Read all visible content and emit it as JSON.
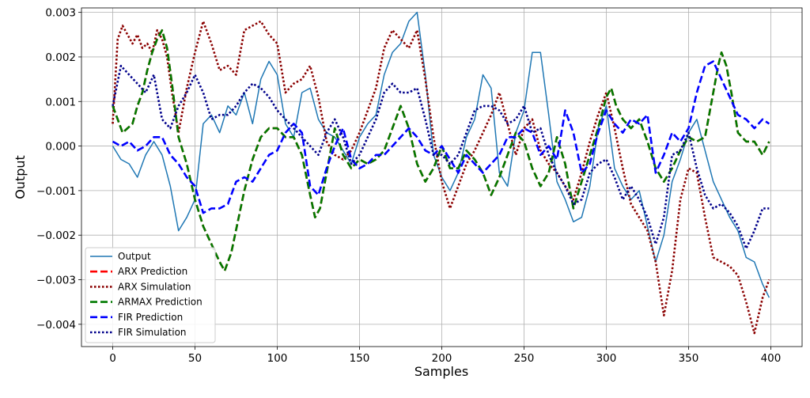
{
  "chart_data": {
    "type": "line",
    "title": "",
    "xlabel": "Samples",
    "ylabel": "Output",
    "xlim": [
      -19,
      419
    ],
    "ylim": [
      -0.0045,
      0.0031
    ],
    "x_ticks": [
      0,
      50,
      100,
      150,
      200,
      250,
      300,
      350,
      400
    ],
    "x_tick_labels": [
      "0",
      "50",
      "100",
      "150",
      "200",
      "250",
      "300",
      "350",
      "400"
    ],
    "y_ticks": [
      0.003,
      0.002,
      0.001,
      0.0,
      -0.001,
      -0.002,
      -0.003,
      -0.004
    ],
    "y_tick_labels": [
      "0.003",
      "0.002",
      "0.001",
      "0.000",
      "−0.001",
      "−0.002",
      "−0.003",
      "−0.004"
    ],
    "grid": true,
    "legend_position": "bottom-left",
    "series": [
      {
        "name": "Output",
        "color": "#1f77b4",
        "style": "solid",
        "x": [
          0,
          5,
          10,
          15,
          20,
          25,
          30,
          35,
          40,
          45,
          50,
          55,
          60,
          65,
          70,
          75,
          80,
          85,
          90,
          95,
          100,
          105,
          110,
          115,
          120,
          125,
          130,
          135,
          140,
          145,
          150,
          155,
          160,
          165,
          170,
          175,
          180,
          185,
          190,
          195,
          200,
          205,
          210,
          215,
          220,
          225,
          230,
          235,
          240,
          245,
          250,
          255,
          260,
          265,
          270,
          275,
          280,
          285,
          290,
          295,
          300,
          305,
          310,
          315,
          320,
          325,
          330,
          335,
          340,
          345,
          350,
          355,
          360,
          365,
          370,
          375,
          380,
          385,
          390,
          395,
          399
        ],
        "values": [
          0.0,
          -0.0003,
          -0.0004,
          -0.0007,
          -0.0002,
          0.0001,
          -0.0002,
          -0.0009,
          -0.0019,
          -0.0016,
          -0.0012,
          0.0005,
          0.0007,
          0.0003,
          0.0009,
          0.0007,
          0.0012,
          0.0005,
          0.0015,
          0.0019,
          0.0016,
          0.0005,
          0.0002,
          0.0012,
          0.0013,
          0.0006,
          0.0003,
          0.0002,
          -0.0001,
          -0.0004,
          0.0002,
          0.0005,
          0.0007,
          0.0016,
          0.0021,
          0.0023,
          0.0028,
          0.003,
          0.0016,
          -0.0002,
          -0.0007,
          -0.001,
          -0.0006,
          0.0002,
          0.0006,
          0.0016,
          0.0013,
          -0.0006,
          -0.0009,
          0.0003,
          0.0008,
          0.0021,
          0.0021,
          0.0007,
          -0.0008,
          -0.0012,
          -0.0017,
          -0.0016,
          -0.0009,
          0.0004,
          0.0009,
          -0.0005,
          -0.0009,
          -0.0012,
          -0.001,
          -0.0018,
          -0.0026,
          -0.002,
          -0.0008,
          -0.0003,
          0.0003,
          0.0006,
          -0.0001,
          -0.0008,
          -0.0012,
          -0.0016,
          -0.0019,
          -0.0025,
          -0.0026,
          -0.0031,
          -0.0034
        ]
      },
      {
        "name": "ARX Prediction",
        "color": "#ff0000",
        "style": "dashed",
        "x": [
          0,
          3,
          6,
          9,
          12,
          15,
          18,
          21,
          24,
          27,
          30,
          33,
          36,
          40,
          45,
          50,
          55,
          60,
          65,
          68,
          72,
          76,
          80,
          85,
          90,
          95,
          100,
          105,
          110,
          115,
          120,
          123,
          126,
          130,
          135,
          140,
          145,
          150,
          155,
          160,
          165,
          170,
          175,
          180,
          185,
          190,
          195,
          200,
          205,
          210,
          215,
          220,
          225,
          230,
          235,
          240,
          245,
          250,
          255,
          260,
          265,
          270,
          275,
          280,
          285,
          290,
          295,
          300,
          303,
          306,
          310,
          315,
          320,
          325,
          330,
          335,
          340,
          345,
          350,
          355,
          360,
          365,
          368,
          370,
          373,
          376,
          380,
          385,
          390,
          395,
          399
        ],
        "values": [
          0.0009,
          0.0006,
          0.0003,
          0.0004,
          0.0005,
          0.0009,
          0.0012,
          0.0017,
          0.0021,
          0.0024,
          0.0026,
          0.0022,
          0.0014,
          0.0002,
          -0.0004,
          -0.0012,
          -0.0018,
          -0.0022,
          -0.0026,
          -0.0028,
          -0.0024,
          -0.0017,
          -0.001,
          -0.0003,
          0.0002,
          0.0004,
          0.0004,
          0.0002,
          0.0002,
          -0.0002,
          -0.0011,
          -0.0016,
          -0.0014,
          -0.0006,
          0.0004,
          -0.0002,
          -0.0005,
          -0.0003,
          -0.0004,
          -0.0003,
          -0.0001,
          0.0004,
          0.0009,
          0.0004,
          -0.0004,
          -0.0008,
          -0.0005,
          0.0,
          -0.0005,
          -0.0005,
          -0.0001,
          -0.0003,
          -0.0006,
          -0.0011,
          -0.0007,
          -0.0002,
          0.0003,
          0.0001,
          -0.0005,
          -0.0009,
          -0.0006,
          0.0002,
          -0.0004,
          -0.0014,
          -0.0008,
          -0.0002,
          0.0004,
          0.0011,
          0.0013,
          0.0009,
          0.0006,
          0.0004,
          0.0006,
          0.0001,
          -0.0005,
          -0.0008,
          -0.0005,
          -0.0001,
          0.0002,
          0.0001,
          0.0002,
          0.0012,
          0.0018,
          0.0021,
          0.0018,
          0.0012,
          0.0003,
          0.0001,
          0.0001,
          -0.0002,
          0.0001
        ]
      },
      {
        "name": "ARX Simulation",
        "color": "#8b0000",
        "style": "dotted",
        "x": [
          0,
          3,
          6,
          9,
          12,
          15,
          18,
          21,
          24,
          27,
          30,
          33,
          36,
          40,
          45,
          50,
          55,
          60,
          65,
          70,
          75,
          80,
          85,
          90,
          95,
          100,
          105,
          110,
          115,
          120,
          125,
          130,
          135,
          140,
          145,
          150,
          155,
          160,
          165,
          170,
          175,
          180,
          185,
          190,
          195,
          200,
          205,
          210,
          215,
          220,
          225,
          230,
          235,
          240,
          245,
          250,
          255,
          260,
          265,
          270,
          275,
          280,
          285,
          290,
          295,
          300,
          305,
          310,
          315,
          320,
          325,
          330,
          335,
          340,
          345,
          350,
          355,
          360,
          365,
          370,
          375,
          380,
          385,
          390,
          395,
          399
        ],
        "values": [
          0.0005,
          0.0024,
          0.0027,
          0.0025,
          0.0023,
          0.0025,
          0.0022,
          0.0023,
          0.0021,
          0.0026,
          0.0024,
          0.002,
          0.0012,
          0.0003,
          0.0013,
          0.0021,
          0.0028,
          0.0023,
          0.0017,
          0.0018,
          0.0016,
          0.0026,
          0.0027,
          0.0028,
          0.0025,
          0.0023,
          0.0012,
          0.0014,
          0.0015,
          0.0018,
          0.0011,
          0.0001,
          -0.0002,
          -0.0003,
          -0.0001,
          0.0003,
          0.0008,
          0.0013,
          0.0022,
          0.0026,
          0.0024,
          0.0022,
          0.0026,
          0.0015,
          0.0002,
          -0.0008,
          -0.0014,
          -0.0009,
          -0.0004,
          -0.0001,
          0.0003,
          0.0007,
          0.0012,
          0.0005,
          -0.0002,
          0.0004,
          0.0006,
          -0.0001,
          -0.0004,
          -0.0006,
          -0.0009,
          -0.0012,
          -0.0006,
          0.0001,
          0.0007,
          0.0012,
          0.0004,
          -0.0005,
          -0.0013,
          -0.0016,
          -0.0019,
          -0.0026,
          -0.0038,
          -0.0028,
          -0.0012,
          -0.0005,
          -0.0006,
          -0.0016,
          -0.0025,
          -0.0026,
          -0.0027,
          -0.0029,
          -0.0035,
          -0.0042,
          -0.0034,
          -0.003
        ]
      },
      {
        "name": "ARMAX Prediction",
        "color": "#007a00",
        "style": "dashed",
        "x": [
          0,
          3,
          6,
          9,
          12,
          15,
          18,
          21,
          24,
          27,
          30,
          33,
          36,
          40,
          45,
          50,
          55,
          60,
          65,
          68,
          72,
          76,
          80,
          85,
          90,
          95,
          100,
          105,
          110,
          115,
          120,
          123,
          126,
          130,
          135,
          140,
          145,
          150,
          155,
          160,
          165,
          170,
          175,
          180,
          185,
          190,
          195,
          200,
          205,
          210,
          215,
          220,
          225,
          230,
          235,
          240,
          245,
          250,
          255,
          260,
          265,
          270,
          275,
          280,
          285,
          290,
          295,
          300,
          303,
          306,
          310,
          315,
          320,
          325,
          330,
          335,
          340,
          345,
          350,
          355,
          360,
          365,
          368,
          370,
          373,
          376,
          380,
          385,
          390,
          395,
          399
        ],
        "values": [
          0.0009,
          0.0006,
          0.0003,
          0.0004,
          0.0005,
          0.0009,
          0.0012,
          0.0017,
          0.0021,
          0.0024,
          0.0026,
          0.0022,
          0.0014,
          0.0002,
          -0.0004,
          -0.0012,
          -0.0018,
          -0.0022,
          -0.0026,
          -0.0028,
          -0.0024,
          -0.0017,
          -0.001,
          -0.0003,
          0.0002,
          0.0004,
          0.0004,
          0.0002,
          0.0002,
          -0.0002,
          -0.0011,
          -0.0016,
          -0.0014,
          -0.0006,
          0.0004,
          -0.0002,
          -0.0005,
          -0.0003,
          -0.0004,
          -0.0003,
          -0.0001,
          0.0004,
          0.0009,
          0.0004,
          -0.0004,
          -0.0008,
          -0.0005,
          0.0,
          -0.0005,
          -0.0005,
          -0.0001,
          -0.0003,
          -0.0006,
          -0.0011,
          -0.0007,
          -0.0002,
          0.0003,
          0.0001,
          -0.0005,
          -0.0009,
          -0.0006,
          0.0002,
          -0.0004,
          -0.0014,
          -0.0008,
          -0.0002,
          0.0004,
          0.0011,
          0.0013,
          0.0009,
          0.0006,
          0.0004,
          0.0006,
          0.0001,
          -0.0005,
          -0.0008,
          -0.0005,
          -0.0001,
          0.0002,
          0.0001,
          0.0002,
          0.0012,
          0.0018,
          0.0021,
          0.0018,
          0.0012,
          0.0003,
          0.0001,
          0.0001,
          -0.0002,
          0.0001
        ]
      },
      {
        "name": "FIR Prediction",
        "color": "#0000ff",
        "style": "dashed",
        "x": [
          0,
          5,
          10,
          15,
          20,
          25,
          30,
          35,
          40,
          45,
          50,
          55,
          60,
          65,
          70,
          75,
          80,
          85,
          90,
          95,
          100,
          105,
          110,
          115,
          120,
          125,
          130,
          135,
          140,
          145,
          150,
          155,
          160,
          165,
          170,
          175,
          180,
          185,
          190,
          195,
          200,
          205,
          210,
          215,
          220,
          225,
          230,
          235,
          240,
          245,
          250,
          255,
          260,
          265,
          270,
          275,
          280,
          285,
          290,
          295,
          300,
          305,
          310,
          315,
          320,
          325,
          330,
          335,
          340,
          345,
          350,
          355,
          360,
          365,
          370,
          375,
          380,
          385,
          390,
          395,
          399
        ],
        "values": [
          0.0001,
          0.0,
          0.0001,
          -0.0001,
          0.0,
          0.0002,
          0.0002,
          -0.0002,
          -0.0004,
          -0.0007,
          -0.0009,
          -0.0015,
          -0.0014,
          -0.0014,
          -0.0013,
          -0.0008,
          -0.0007,
          -0.0008,
          -0.0005,
          -0.0002,
          -0.0001,
          0.0003,
          0.0005,
          0.0003,
          -0.0009,
          -0.0011,
          -0.0005,
          0.0,
          0.0004,
          -0.0003,
          -0.0005,
          -0.0004,
          -0.0002,
          -0.0002,
          0.0,
          0.0002,
          0.0004,
          0.0002,
          -0.0001,
          -0.0002,
          0.0,
          -0.0003,
          -0.0006,
          -0.0002,
          -0.0004,
          -0.0006,
          -0.0004,
          -0.0002,
          0.0002,
          0.0002,
          0.0004,
          0.0003,
          -0.0002,
          0.0,
          -0.0003,
          0.0008,
          0.0003,
          -0.0006,
          -0.0004,
          0.0003,
          0.0008,
          0.0005,
          0.0003,
          0.0006,
          0.0005,
          0.0007,
          -0.0006,
          -0.0002,
          0.0003,
          0.0001,
          0.0004,
          0.0012,
          0.0018,
          0.0019,
          0.0015,
          0.0011,
          0.0007,
          0.0006,
          0.0004,
          0.0006,
          0.0005
        ]
      },
      {
        "name": "FIR Simulation",
        "color": "#00008b",
        "style": "dotted",
        "x": [
          0,
          5,
          10,
          15,
          20,
          25,
          30,
          35,
          40,
          45,
          50,
          55,
          60,
          65,
          70,
          75,
          80,
          85,
          90,
          95,
          100,
          105,
          110,
          115,
          120,
          125,
          130,
          135,
          140,
          145,
          150,
          155,
          160,
          165,
          170,
          175,
          180,
          185,
          190,
          195,
          200,
          205,
          210,
          215,
          220,
          225,
          230,
          235,
          240,
          245,
          250,
          255,
          260,
          265,
          270,
          275,
          280,
          285,
          290,
          295,
          300,
          305,
          310,
          315,
          320,
          325,
          330,
          335,
          340,
          345,
          350,
          355,
          360,
          365,
          370,
          375,
          380,
          385,
          390,
          395,
          399
        ],
        "values": [
          0.0009,
          0.0018,
          0.0016,
          0.0014,
          0.0012,
          0.0016,
          0.0006,
          0.0004,
          0.0009,
          0.0012,
          0.0016,
          0.0012,
          0.0006,
          0.0007,
          0.0007,
          0.0009,
          0.0012,
          0.0014,
          0.0013,
          0.0011,
          0.0008,
          0.0006,
          0.0004,
          0.0002,
          0.0,
          -0.0002,
          0.0003,
          0.0006,
          0.0002,
          -0.0004,
          -0.0002,
          0.0002,
          0.0006,
          0.0012,
          0.0014,
          0.0012,
          0.0012,
          0.0013,
          0.0006,
          -0.0002,
          -0.0002,
          -0.0004,
          -0.0002,
          0.0003,
          0.0008,
          0.0009,
          0.0009,
          0.0008,
          0.0005,
          0.0006,
          0.0009,
          0.0003,
          0.0004,
          -0.0002,
          -0.0006,
          -0.0009,
          -0.0013,
          -0.0012,
          -0.0006,
          -0.0004,
          -0.0003,
          -0.0007,
          -0.0012,
          -0.0009,
          -0.0012,
          -0.0016,
          -0.0022,
          -0.0016,
          -0.0002,
          -0.0001,
          0.0003,
          -0.0005,
          -0.0011,
          -0.0014,
          -0.0013,
          -0.0015,
          -0.0018,
          -0.0023,
          -0.0019,
          -0.0014,
          -0.0014
        ]
      }
    ]
  }
}
